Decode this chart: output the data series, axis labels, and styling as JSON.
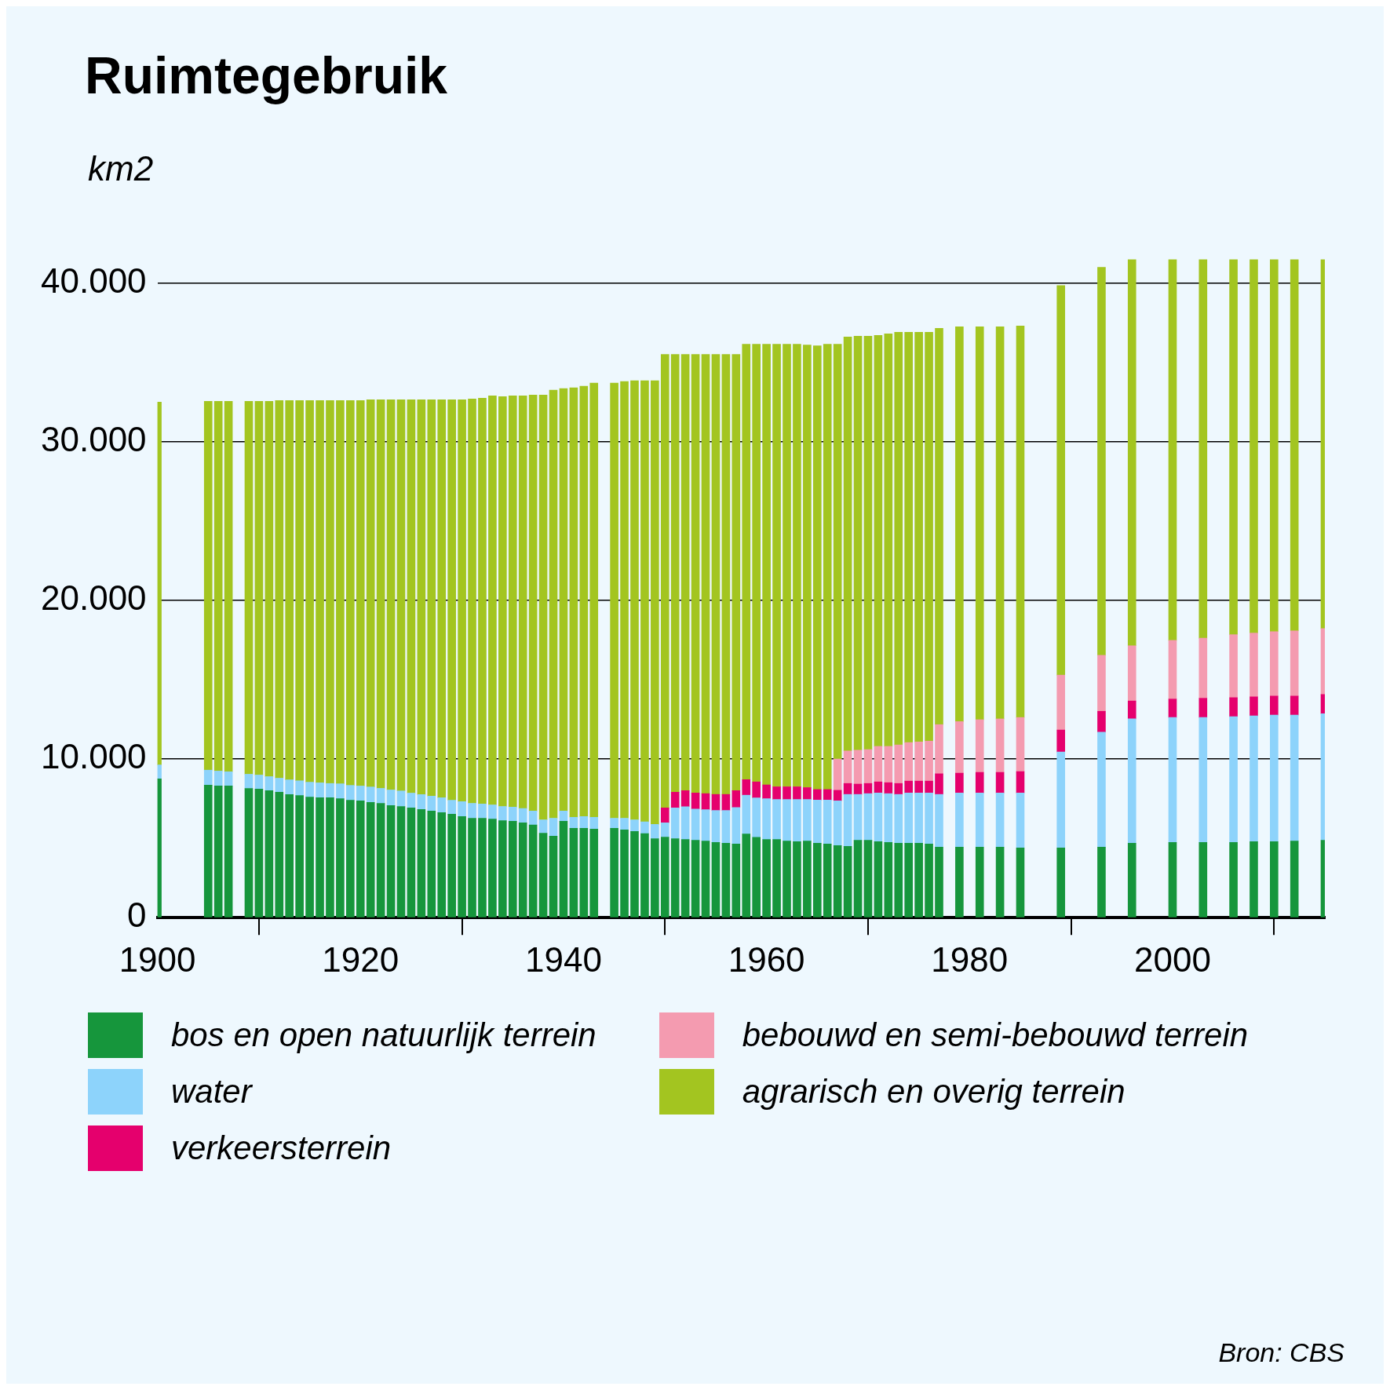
{
  "chart_data": {
    "type": "bar",
    "title": "Ruimtegebruik",
    "ylabel": "km2",
    "stacked": true,
    "grid": "y",
    "legend": "bottom",
    "x": [
      1900,
      1905,
      1906,
      1907,
      1909,
      1910,
      1911,
      1912,
      1913,
      1914,
      1915,
      1916,
      1917,
      1918,
      1919,
      1920,
      1921,
      1922,
      1923,
      1924,
      1925,
      1926,
      1927,
      1928,
      1929,
      1930,
      1931,
      1932,
      1933,
      1934,
      1935,
      1936,
      1937,
      1938,
      1939,
      1940,
      1941,
      1942,
      1943,
      1945,
      1946,
      1947,
      1948,
      1949,
      1950,
      1951,
      1952,
      1953,
      1954,
      1955,
      1956,
      1957,
      1958,
      1959,
      1960,
      1961,
      1962,
      1963,
      1964,
      1965,
      1966,
      1967,
      1968,
      1969,
      1970,
      1971,
      1972,
      1973,
      1974,
      1975,
      1976,
      1977,
      1979,
      1981,
      1983,
      1985,
      1989,
      1993,
      1996,
      2000,
      2003,
      2006,
      2008,
      2010,
      2012,
      2015
    ],
    "xlim": [
      1900,
      2015
    ],
    "xticks": [
      1900,
      1920,
      1940,
      1960,
      1980,
      2000
    ],
    "ylim": [
      0,
      41500
    ],
    "yticks": [
      {
        "value": 0,
        "label": "0"
      },
      {
        "value": 10000,
        "label": "10.000"
      },
      {
        "value": 20000,
        "label": "20.000"
      },
      {
        "value": 30000,
        "label": "30.000"
      },
      {
        "value": 40000,
        "label": "40.000"
      }
    ],
    "series": [
      {
        "name": "bos en open natuurlijk terrein",
        "color": "#16963c",
        "values": [
          8750,
          8360,
          8300,
          8300,
          8150,
          8110,
          8010,
          7910,
          7760,
          7700,
          7600,
          7560,
          7560,
          7500,
          7400,
          7370,
          7270,
          7210,
          7070,
          7010,
          6920,
          6820,
          6720,
          6620,
          6530,
          6370,
          6270,
          6270,
          6210,
          6120,
          6080,
          5980,
          5840,
          5330,
          5140,
          6080,
          5630,
          5630,
          5590,
          5630,
          5530,
          5430,
          5300,
          4980,
          5080,
          4980,
          4930,
          4880,
          4830,
          4740,
          4690,
          4640,
          5270,
          5070,
          4930,
          4930,
          4830,
          4790,
          4830,
          4690,
          4640,
          4550,
          4500,
          4880,
          4880,
          4790,
          4740,
          4690,
          4690,
          4690,
          4640,
          4450,
          4450,
          4450,
          4450,
          4400,
          4400,
          4450,
          4690,
          4740,
          4740,
          4740,
          4790,
          4790,
          4830,
          4880
        ]
      },
      {
        "name": "water",
        "color": "#8dd3fb",
        "values": [
          880,
          940,
          940,
          900,
          890,
          880,
          880,
          880,
          930,
          930,
          940,
          940,
          900,
          940,
          940,
          930,
          970,
          940,
          980,
          980,
          930,
          940,
          940,
          940,
          870,
          940,
          940,
          900,
          900,
          890,
          890,
          900,
          880,
          840,
          1130,
          640,
          700,
          740,
          740,
          640,
          740,
          740,
          740,
          900,
          900,
          1940,
          2070,
          1970,
          1980,
          2020,
          2070,
          2310,
          2450,
          2480,
          2570,
          2520,
          2620,
          2660,
          2620,
          2720,
          2770,
          2810,
          3270,
          2890,
          2940,
          3070,
          3080,
          3080,
          3170,
          3170,
          3220,
          3320,
          3410,
          3410,
          3410,
          3460,
          6040,
          7240,
          7840,
          7880,
          7880,
          7930,
          7930,
          7980,
          7940,
          7980
        ]
      },
      {
        "name": "verkeersterrein",
        "color": "#e5006d",
        "values": [
          null,
          null,
          null,
          null,
          null,
          null,
          null,
          null,
          null,
          null,
          null,
          null,
          null,
          null,
          null,
          null,
          null,
          null,
          null,
          null,
          null,
          null,
          null,
          null,
          null,
          null,
          null,
          null,
          null,
          null,
          null,
          null,
          null,
          null,
          null,
          null,
          null,
          null,
          null,
          null,
          null,
          null,
          null,
          null,
          940,
          990,
          1010,
          1010,
          1010,
          1010,
          1010,
          1060,
          980,
          1010,
          870,
          800,
          800,
          800,
          750,
          670,
          670,
          670,
          690,
          650,
          640,
          700,
          690,
          690,
          750,
          750,
          750,
          1300,
          1250,
          1300,
          1300,
          1350,
          1390,
          1320,
          1130,
          1160,
          1210,
          1200,
          1200,
          1200,
          1200,
          1210
        ]
      },
      {
        "name": "bebouwd en semi-bebouwd terrein",
        "color": "#f49bb0",
        "values": [
          null,
          null,
          null,
          null,
          null,
          null,
          null,
          null,
          null,
          null,
          null,
          null,
          null,
          null,
          null,
          null,
          null,
          null,
          null,
          null,
          null,
          null,
          null,
          null,
          null,
          null,
          null,
          null,
          null,
          null,
          null,
          null,
          null,
          null,
          null,
          null,
          null,
          null,
          null,
          null,
          null,
          null,
          null,
          null,
          null,
          null,
          null,
          null,
          null,
          null,
          null,
          null,
          null,
          null,
          null,
          null,
          null,
          null,
          null,
          null,
          null,
          1970,
          2050,
          2140,
          2140,
          2240,
          2290,
          2430,
          2430,
          2470,
          2520,
          3100,
          3250,
          3320,
          3370,
          3410,
          3460,
          3530,
          3480,
          3700,
          3790,
          3970,
          4020,
          4060,
          4110,
          4150
        ]
      },
      {
        "name": "agrarisch en overig terrein",
        "color": "#a3c520",
        "values": [
          22870,
          23250,
          23310,
          23350,
          23510,
          23560,
          23660,
          23810,
          23910,
          23970,
          24060,
          24100,
          24140,
          24160,
          24260,
          24300,
          24410,
          24500,
          24600,
          24660,
          24800,
          24890,
          24990,
          25090,
          25250,
          25340,
          25490,
          25580,
          25790,
          25840,
          25930,
          26020,
          26230,
          26780,
          26980,
          26630,
          27070,
          27130,
          27370,
          27430,
          27530,
          27680,
          27810,
          27970,
          28580,
          27590,
          27490,
          27640,
          27680,
          27730,
          27730,
          27490,
          27450,
          27590,
          27780,
          27900,
          27900,
          27900,
          27900,
          27970,
          28070,
          26150,
          26090,
          26090,
          26050,
          25900,
          26000,
          26010,
          25860,
          25820,
          25770,
          24980,
          24890,
          24770,
          24720,
          24680,
          24560,
          24460,
          24360,
          24020,
          23880,
          23660,
          23560,
          23470,
          23420,
          23280
        ]
      }
    ],
    "annotations": [
      "Bron: CBS"
    ]
  }
}
